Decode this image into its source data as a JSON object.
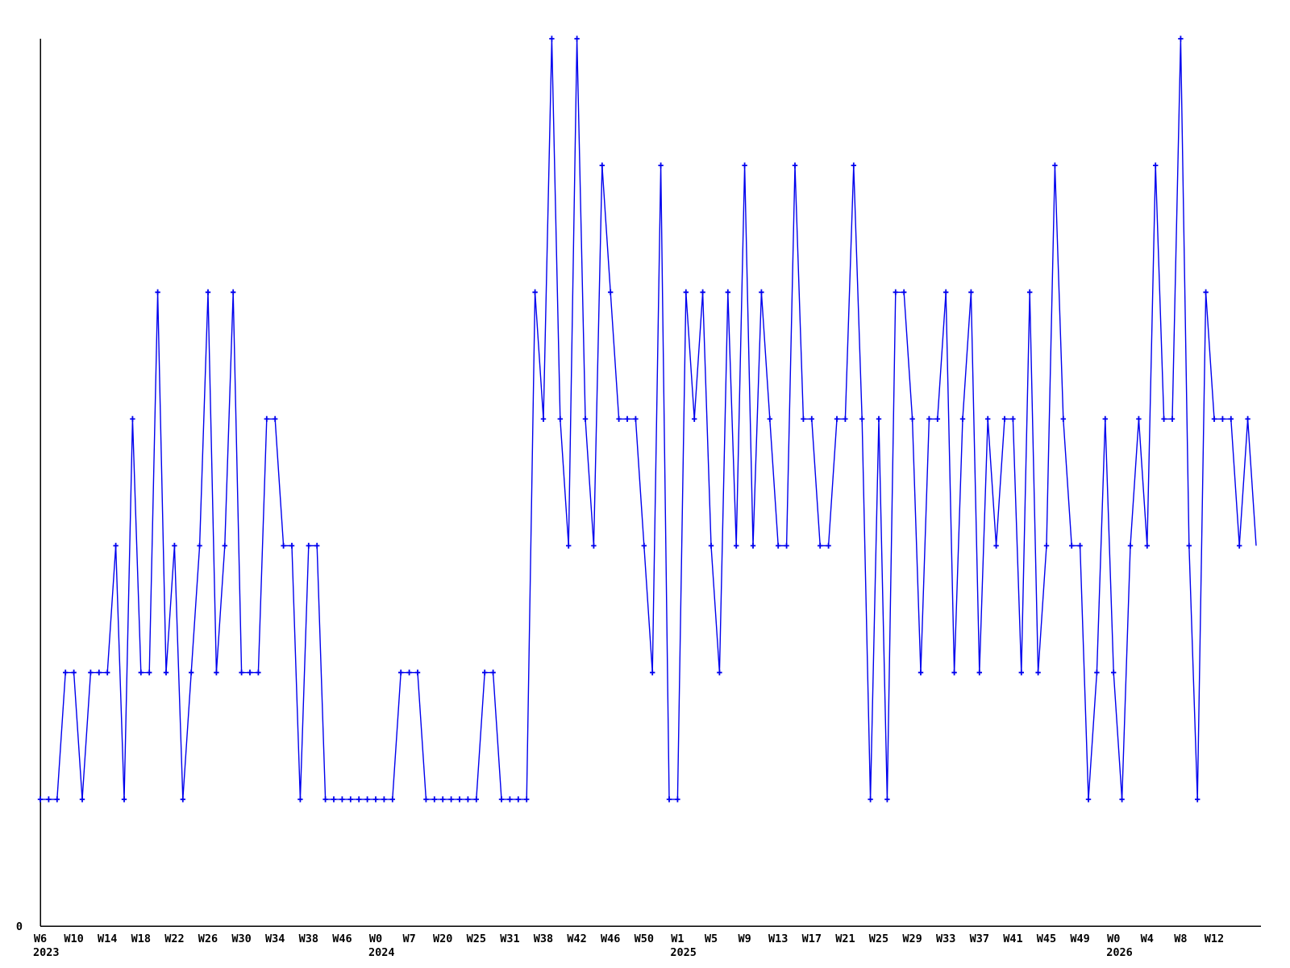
{
  "chart_data": {
    "type": "line",
    "title": "",
    "xlabel": "",
    "ylabel": "",
    "y_origin_label": "0",
    "ylim": [
      0,
      7.05
    ],
    "grid": false,
    "legend": "none",
    "marker": "plus",
    "line_color": "#0000ee",
    "axis_color": "#000000",
    "text_color": "#000000",
    "background": "#ffffff",
    "values": [
      1,
      1,
      1,
      2,
      2,
      1,
      2,
      2,
      2,
      3,
      1,
      4,
      2,
      2,
      5,
      2,
      3,
      1,
      2,
      3,
      5,
      2,
      3,
      5,
      2,
      2,
      2,
      4,
      4,
      3,
      3,
      1,
      3,
      3,
      1,
      1,
      1,
      1,
      1,
      1,
      1,
      1,
      1,
      2,
      2,
      2,
      1,
      1,
      1,
      1,
      1,
      1,
      1,
      2,
      2,
      1,
      1,
      1,
      1,
      5,
      4,
      7,
      4,
      3,
      7,
      4,
      3,
      6,
      5,
      4,
      4,
      4,
      3,
      2,
      6,
      1,
      1,
      5,
      4,
      5,
      3,
      2,
      5,
      3,
      6,
      3,
      5,
      4,
      3,
      3,
      6,
      4,
      4,
      3,
      3,
      4,
      4,
      6,
      4,
      1,
      4,
      1,
      5,
      5,
      4,
      2,
      4,
      4,
      5,
      2,
      4,
      5,
      2,
      4,
      3,
      4,
      4,
      2,
      5,
      2,
      3,
      6,
      4,
      3,
      3,
      1,
      2,
      4,
      2,
      1,
      3,
      4,
      3,
      6,
      4,
      4,
      7,
      3,
      1,
      5,
      4,
      4,
      4,
      3,
      4,
      3
    ],
    "x_tick_every": 4,
    "x_tick_labels": [
      "W6",
      "W10",
      "W14",
      "W18",
      "W22",
      "W26",
      "W30",
      "W34",
      "W38",
      "W46",
      "W0",
      "W7",
      "W20",
      "W25",
      "W31",
      "W38",
      "W42",
      "W46",
      "W50",
      "W1",
      "W5",
      "W9",
      "W13",
      "W17",
      "W21",
      "W25",
      "W29",
      "W33",
      "W37",
      "W41",
      "W45",
      "W49",
      "W0",
      "W4",
      "W8",
      "W12"
    ],
    "year_labels": [
      {
        "tick_index": 0,
        "text": "2023"
      },
      {
        "tick_index": 10,
        "text": "2024"
      },
      {
        "tick_index": 19,
        "text": "2025"
      },
      {
        "tick_index": 32,
        "text": "2026"
      }
    ]
  }
}
